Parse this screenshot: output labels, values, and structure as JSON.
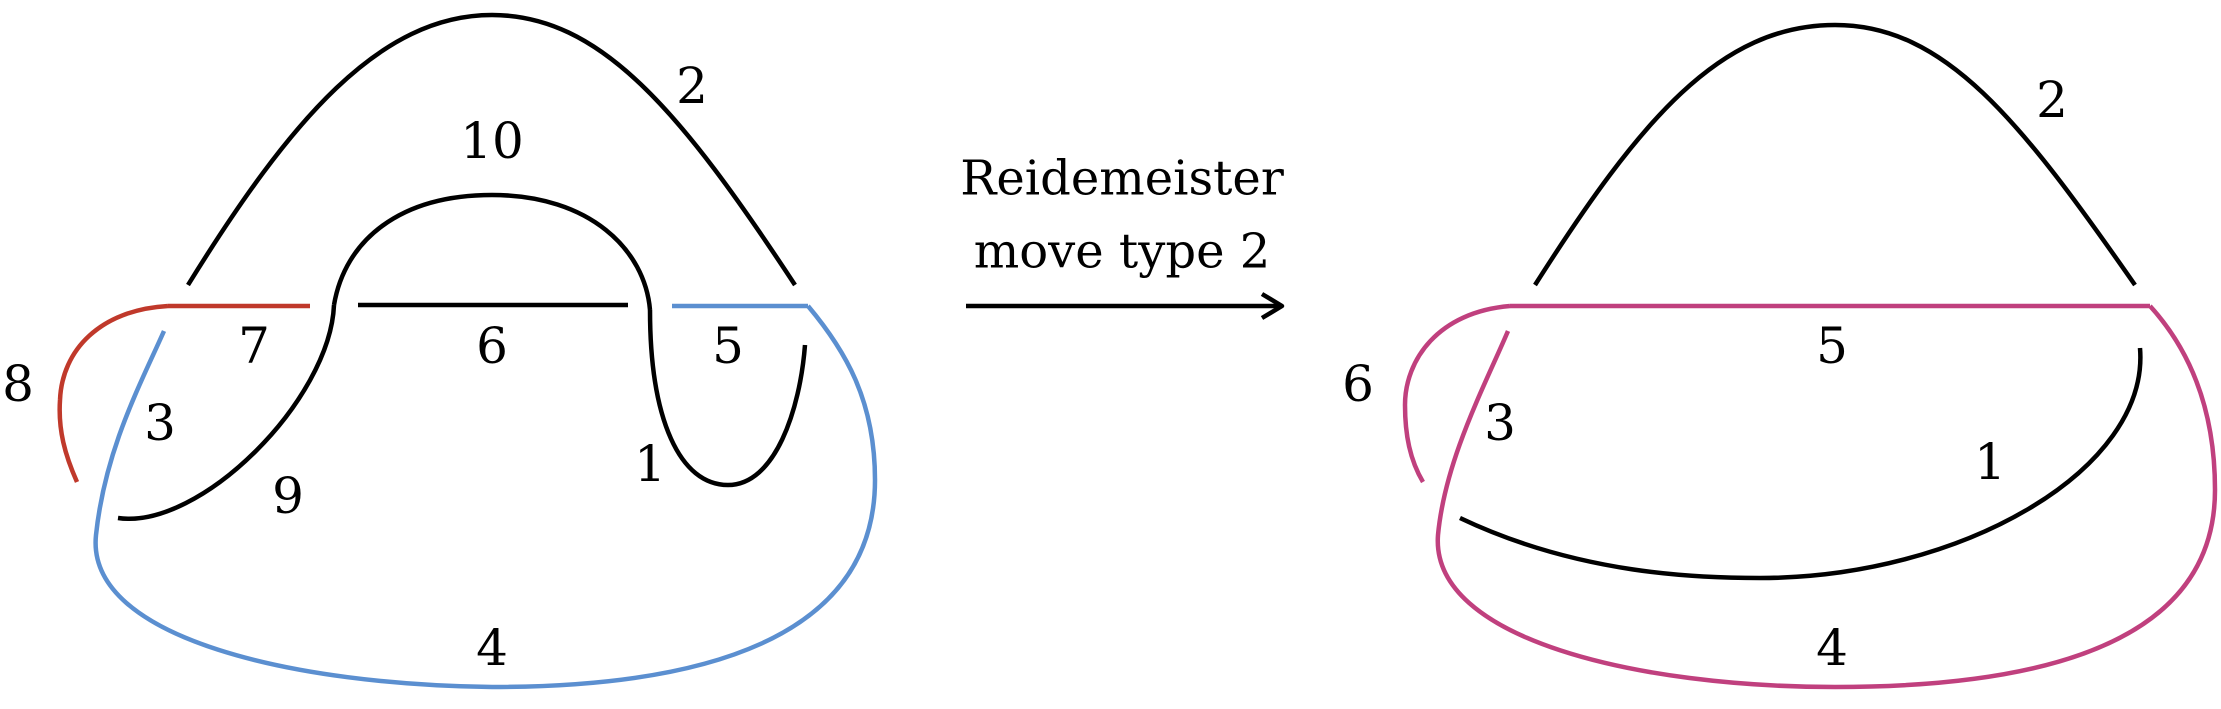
{
  "colors": {
    "black": "#000000",
    "red": "#c0392b",
    "blue": "#5b8fd0",
    "magenta": "#c0407e"
  },
  "left_diagram": {
    "arc_labels": [
      "1",
      "2",
      "3",
      "4",
      "5",
      "6",
      "7",
      "8",
      "9",
      "10"
    ]
  },
  "move": {
    "line1": "Reidemeister",
    "line2": "move type 2"
  },
  "right_diagram": {
    "arc_labels": [
      "1",
      "2",
      "3",
      "4",
      "5",
      "6"
    ]
  }
}
